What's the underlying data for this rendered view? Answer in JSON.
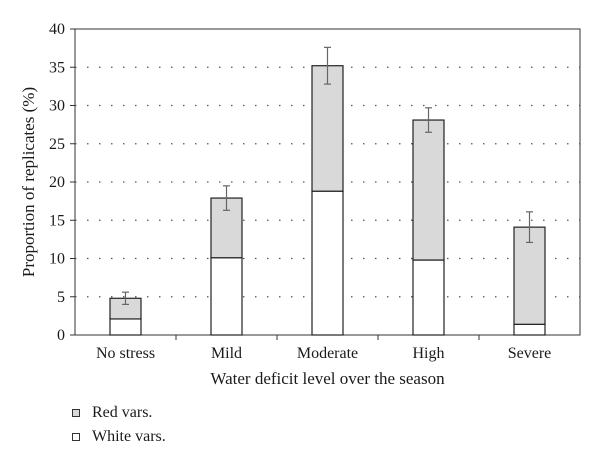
{
  "chart_data": {
    "type": "bar",
    "stacked": true,
    "categories": [
      "No stress",
      "Mild",
      "Moderate",
      "High",
      "Severe"
    ],
    "series": [
      {
        "name": "White vars.",
        "values": [
          2.1,
          10.1,
          18.8,
          9.8,
          1.4
        ],
        "color": "#ffffff"
      },
      {
        "name": "Red vars.",
        "values": [
          2.7,
          7.8,
          16.4,
          18.3,
          12.7
        ],
        "color": "#d9d9d9"
      }
    ],
    "totals": [
      4.8,
      17.9,
      35.2,
      28.1,
      14.1
    ],
    "error": [
      0.8,
      1.6,
      2.4,
      1.6,
      2.0
    ],
    "ylim": [
      0,
      40
    ],
    "yticks": [
      0,
      5,
      10,
      15,
      20,
      25,
      30,
      35,
      40
    ],
    "grid": "dotted horizontal",
    "xlabel": "Water deficit level over the season",
    "ylabel": "Proportion of replicates (%)",
    "legend_position": "bottom-left"
  },
  "legend": {
    "red_label": "Red vars.",
    "white_label": "White vars.",
    "red_color": "#d9d9d9",
    "white_color": "#ffffff"
  }
}
